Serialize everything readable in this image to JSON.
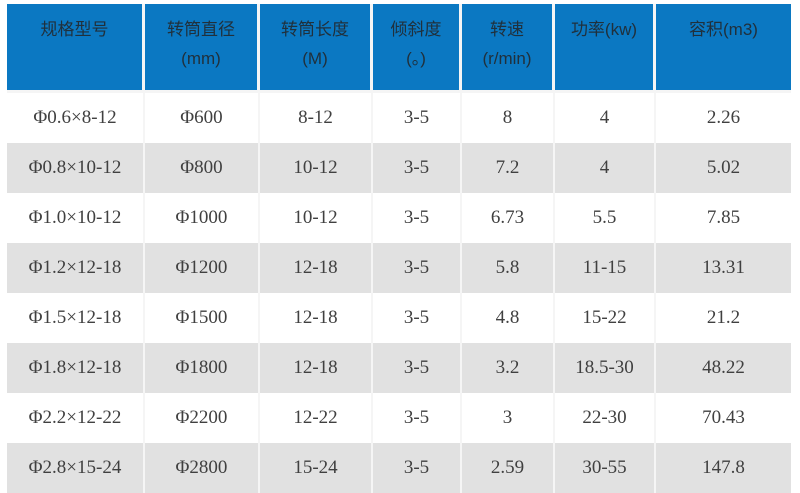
{
  "style": {
    "header_bg": "#0b78c2",
    "header_text_color": "#20303c",
    "row_bg": "#ffffff",
    "row_alt_bg": "#e1e1e1",
    "separator_color": "#f5f5f5",
    "body_text_color": "#404040"
  },
  "chart_data": {
    "type": "table",
    "title": "",
    "columns": [
      "规格型号",
      "转筒直径\n(mm)",
      "转筒长度\n(M)",
      "倾斜度\n(。)",
      "转速\n(r/min)",
      "功率(kw)",
      "容积(m3)"
    ],
    "rows": [
      [
        "Φ0.6×8-12",
        "Φ600",
        "8-12",
        "3-5",
        "8",
        "4",
        "2.26"
      ],
      [
        "Φ0.8×10-12",
        "Φ800",
        "10-12",
        "3-5",
        "7.2",
        "4",
        "5.02"
      ],
      [
        "Φ1.0×10-12",
        "Φ1000",
        "10-12",
        "3-5",
        "6.73",
        "5.5",
        "7.85"
      ],
      [
        "Φ1.2×12-18",
        "Φ1200",
        "12-18",
        "3-5",
        "5.8",
        "11-15",
        "13.31"
      ],
      [
        "Φ1.5×12-18",
        "Φ1500",
        "12-18",
        "3-5",
        "4.8",
        "15-22",
        "21.2"
      ],
      [
        "Φ1.8×12-18",
        "Φ1800",
        "12-18",
        "3-5",
        "3.2",
        "18.5-30",
        "48.22"
      ],
      [
        "Φ2.2×12-22",
        "Φ2200",
        "12-22",
        "3-5",
        "3",
        "22-30",
        "70.43"
      ],
      [
        "Φ2.8×15-24",
        "Φ2800",
        "15-24",
        "3-5",
        "2.59",
        "30-55",
        "147.8"
      ]
    ],
    "layout": {
      "header_rows": 1,
      "body_rows": 8,
      "row_striping": "even-rows-gray",
      "grid": "thin-light-column-separators"
    }
  }
}
